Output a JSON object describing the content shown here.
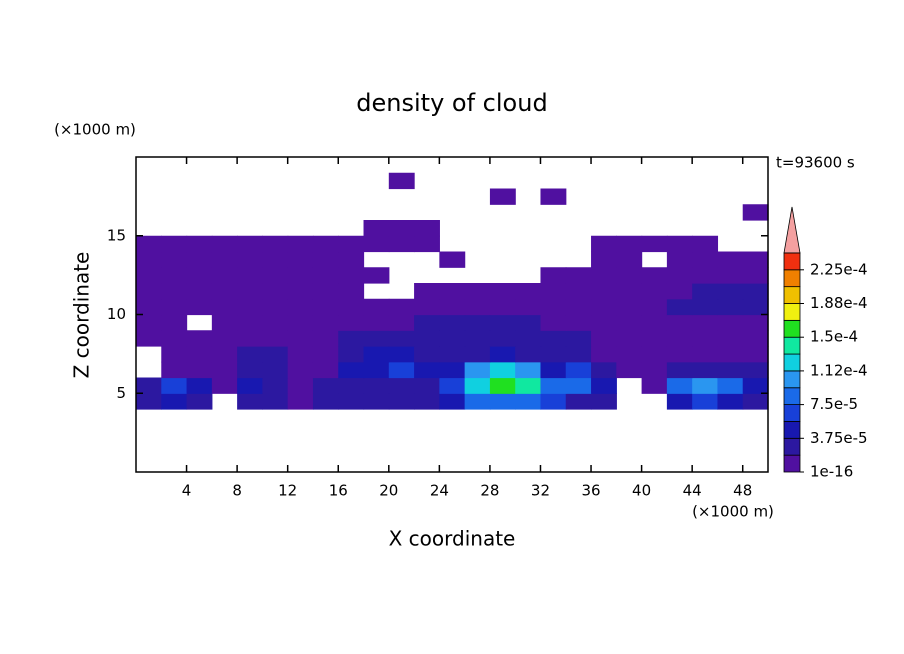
{
  "chart_data": {
    "type": "contour",
    "title": "density of cloud",
    "x_label": "X coordinate",
    "y_label": "Z coordinate",
    "x_unit": "(×1000 m)",
    "y_unit": "(×1000 m)",
    "annotation": "t=93600 s",
    "xlim": [
      0,
      50
    ],
    "ylim": [
      0,
      20
    ],
    "xticks": [
      4,
      8,
      12,
      16,
      20,
      24,
      28,
      32,
      36,
      40,
      44,
      48
    ],
    "yticks": [
      5,
      10,
      15
    ],
    "x": [
      1,
      3,
      5,
      7,
      9,
      11,
      13,
      15,
      17,
      19,
      21,
      23,
      25,
      27,
      29,
      31,
      33,
      35,
      37,
      39,
      41,
      43,
      45,
      47,
      49
    ],
    "z": [
      4.5,
      5.5,
      6.5,
      7.5,
      8.5,
      9.5,
      10.5,
      11.5,
      12.5,
      13.5,
      14.5,
      15.5,
      16.5,
      17.5,
      18.5
    ],
    "values": [
      [
        3e-05,
        5e-05,
        3e-05,
        null,
        3e-05,
        2e-05,
        1e-05,
        2e-05,
        2e-05,
        3e-05,
        3e-05,
        3e-05,
        5e-05,
        8e-05,
        9e-05,
        8e-05,
        6e-05,
        3e-05,
        2e-05,
        null,
        null,
        4e-05,
        6e-05,
        5e-05,
        3e-05
      ],
      [
        2e-05,
        6e-05,
        4e-05,
        1e-05,
        5e-05,
        3e-05,
        1e-05,
        2e-05,
        3e-05,
        3e-05,
        3e-05,
        3e-05,
        6e-05,
        0.00012,
        0.00016,
        0.00014,
        8e-05,
        9e-05,
        5e-05,
        null,
        1e-05,
        8e-05,
        0.00011,
        9e-05,
        4e-05
      ],
      [
        null,
        1e-05,
        1e-05,
        1e-05,
        3e-05,
        2e-05,
        1e-05,
        1e-05,
        4e-05,
        5e-05,
        6e-05,
        5e-05,
        4e-05,
        0.0001,
        0.00013,
        0.00011,
        4e-05,
        7e-05,
        2e-05,
        1e-05,
        1e-05,
        2e-05,
        3e-05,
        3e-05,
        2e-05
      ],
      [
        null,
        1e-05,
        1e-05,
        1e-05,
        2e-05,
        2e-05,
        1e-05,
        1e-05,
        3e-05,
        4e-05,
        4e-05,
        3e-05,
        3e-05,
        3e-05,
        4e-05,
        3e-05,
        2e-05,
        2e-05,
        1e-05,
        1e-05,
        1e-05,
        1e-05,
        1e-05,
        1e-05,
        1e-05
      ],
      [
        1e-05,
        1e-05,
        1e-05,
        1e-05,
        1e-05,
        1e-05,
        1e-05,
        1e-05,
        2e-05,
        3e-05,
        3e-05,
        3e-05,
        3e-05,
        3e-05,
        3e-05,
        3e-05,
        2e-05,
        2e-05,
        1e-05,
        1e-05,
        1e-05,
        1e-05,
        1e-05,
        1e-05,
        1e-05
      ],
      [
        1e-05,
        1e-05,
        null,
        1e-05,
        1e-05,
        1e-05,
        1e-05,
        1e-05,
        1e-05,
        1e-05,
        1e-05,
        2e-05,
        2e-05,
        2e-05,
        2e-05,
        2e-05,
        1e-05,
        1e-05,
        1e-05,
        1e-05,
        1e-05,
        1e-05,
        1e-05,
        1e-05,
        1e-05
      ],
      [
        1e-05,
        1e-05,
        1e-05,
        1e-05,
        1e-05,
        1e-05,
        1e-05,
        1e-05,
        1e-05,
        1e-05,
        1e-05,
        1e-05,
        1e-05,
        1e-05,
        1e-05,
        1e-05,
        1e-05,
        1e-05,
        1e-05,
        1e-05,
        1e-05,
        2e-05,
        2e-05,
        2e-05,
        2e-05
      ],
      [
        1e-05,
        1e-05,
        1e-05,
        1e-05,
        1e-05,
        1e-05,
        1e-05,
        1e-05,
        1e-05,
        null,
        null,
        1e-05,
        1e-05,
        1e-05,
        1e-05,
        1e-05,
        1e-05,
        1e-05,
        1e-05,
        1e-05,
        1e-05,
        1e-05,
        2e-05,
        2e-05,
        2e-05
      ],
      [
        1e-05,
        1e-05,
        1e-05,
        1e-05,
        1e-05,
        1e-05,
        1e-05,
        1e-05,
        1e-05,
        1e-05,
        null,
        null,
        null,
        null,
        null,
        null,
        1e-05,
        1e-05,
        1e-05,
        1e-05,
        1e-05,
        1e-05,
        1e-05,
        1e-05,
        1e-05
      ],
      [
        1e-05,
        1e-05,
        1e-05,
        1e-05,
        1e-05,
        1e-05,
        1e-05,
        1e-05,
        1e-05,
        null,
        null,
        null,
        1e-05,
        null,
        null,
        null,
        null,
        null,
        1e-05,
        1e-05,
        null,
        1e-05,
        1e-05,
        1e-05,
        1e-05
      ],
      [
        1e-05,
        1e-05,
        1e-05,
        1e-05,
        1e-05,
        1e-05,
        1e-05,
        1e-05,
        1e-05,
        1e-05,
        1e-05,
        1e-05,
        null,
        null,
        null,
        null,
        null,
        null,
        1e-05,
        1e-05,
        1e-05,
        1e-05,
        1e-05,
        null,
        null
      ],
      [
        null,
        null,
        null,
        null,
        null,
        null,
        null,
        null,
        null,
        1e-05,
        1e-05,
        1e-05,
        null,
        null,
        null,
        null,
        null,
        null,
        null,
        null,
        null,
        null,
        null,
        null,
        null
      ],
      [
        null,
        null,
        null,
        null,
        null,
        null,
        null,
        null,
        null,
        null,
        null,
        null,
        null,
        null,
        null,
        null,
        null,
        null,
        null,
        null,
        null,
        null,
        null,
        null,
        1e-05
      ],
      [
        null,
        null,
        null,
        null,
        null,
        null,
        null,
        null,
        null,
        null,
        null,
        null,
        null,
        null,
        1e-05,
        null,
        1e-05,
        null,
        null,
        null,
        null,
        null,
        null,
        null,
        null
      ],
      [
        null,
        null,
        null,
        null,
        null,
        null,
        null,
        null,
        null,
        null,
        1e-05,
        null,
        null,
        null,
        null,
        null,
        null,
        null,
        null,
        null,
        null,
        null,
        null,
        null,
        null
      ]
    ],
    "levels": [
      1e-16,
      1.875e-05,
      3.75e-05,
      5.625e-05,
      7.5e-05,
      9.375e-05,
      0.0001125,
      0.00013125,
      0.00015,
      0.00016875,
      0.0001875,
      0.00020625,
      0.000225,
      0.00024375
    ],
    "colors": [
      "#5010a0",
      "#2c18a0",
      "#1818b0",
      "#1840d8",
      "#1a6ae8",
      "#2a96f0",
      "#10d0e0",
      "#10e8a0",
      "#20e020",
      "#f0f010",
      "#f0c000",
      "#f08000",
      "#f03010"
    ],
    "extend_color": "#f4a0a0",
    "colorbar_ticks": [
      {
        "value": 1e-16,
        "label": "1e-16"
      },
      {
        "value": 3.75e-05,
        "label": "3.75e-5"
      },
      {
        "value": 7.5e-05,
        "label": "7.5e-5"
      },
      {
        "value": 0.0001125,
        "label": "1.12e-4"
      },
      {
        "value": 0.00015,
        "label": "1.5e-4"
      },
      {
        "value": 0.0001875,
        "label": "1.88e-4"
      },
      {
        "value": 0.000225,
        "label": "2.25e-4"
      }
    ]
  }
}
